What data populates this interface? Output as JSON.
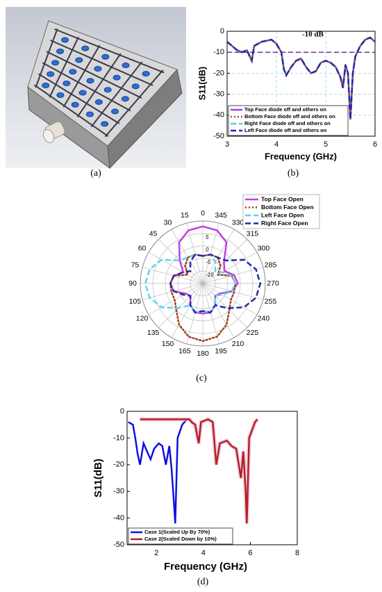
{
  "panel_a": {
    "caption": "(a)"
  },
  "chart_data": [
    {
      "type": "line",
      "caption": "(b)",
      "xlabel": "Frequency (GHz)",
      "ylabel": "S11(dB)",
      "annotation": "-10 dB",
      "hline": -10,
      "hline_color": "#7b2d8e",
      "xlim": [
        3,
        6
      ],
      "xticks": [
        3,
        4,
        5,
        6
      ],
      "ylim": [
        -50,
        0
      ],
      "yticks": [
        0,
        -10,
        -20,
        -30,
        -40,
        -50
      ],
      "grid": true,
      "legend": "lower left",
      "x": [
        3.0,
        3.1,
        3.2,
        3.3,
        3.4,
        3.5,
        3.55,
        3.7,
        3.9,
        4.0,
        4.1,
        4.15,
        4.2,
        4.3,
        4.4,
        4.5,
        4.6,
        4.7,
        4.8,
        4.9,
        5.0,
        5.1,
        5.2,
        5.3,
        5.35,
        5.4,
        5.45,
        5.5,
        5.55,
        5.6,
        5.7,
        5.8,
        5.9,
        6.0
      ],
      "series": [
        {
          "name": "Top Face diode off and others on",
          "color": "#a040f0",
          "style": "solid",
          "values": [
            -5,
            -7,
            -9,
            -10,
            -9,
            -14,
            -7,
            -5,
            -4,
            -6,
            -10,
            -18,
            -21,
            -17,
            -14,
            -13,
            -17,
            -20,
            -19,
            -15,
            -14,
            -15,
            -17,
            -22,
            -27,
            -16,
            -20,
            -42,
            -20,
            -12,
            -7,
            -4,
            -3,
            -5
          ]
        },
        {
          "name": "Bottom Face diode off and others on",
          "color": "#a0522d",
          "style": "dotted",
          "values": [
            -5,
            -7,
            -9,
            -10,
            -9,
            -14,
            -7,
            -5,
            -4,
            -6,
            -10,
            -18,
            -21,
            -17,
            -14,
            -13,
            -17,
            -20,
            -19,
            -15,
            -14,
            -15,
            -17,
            -22,
            -27,
            -16,
            -20,
            -42,
            -20,
            -12,
            -7,
            -4,
            -3,
            -5
          ]
        },
        {
          "name": "Right Face diode off and others on",
          "color": "#5cc8e8",
          "style": "dashed",
          "values": [
            -5,
            -7,
            -9,
            -10,
            -9,
            -14,
            -7,
            -5,
            -4,
            -6,
            -10,
            -18,
            -21,
            -17,
            -14,
            -13,
            -17,
            -20,
            -19,
            -15,
            -14,
            -15,
            -17,
            -22,
            -27,
            -16,
            -20,
            -42,
            -20,
            -12,
            -7,
            -4,
            -3,
            -5
          ]
        },
        {
          "name": "Left Face diode off and others on",
          "color": "#1f2aa8",
          "style": "dashed",
          "values": [
            -5,
            -7,
            -9,
            -10,
            -9,
            -14,
            -7,
            -5,
            -4,
            -6,
            -10,
            -18,
            -21,
            -17,
            -14,
            -13,
            -17,
            -20,
            -19,
            -15,
            -14,
            -15,
            -17,
            -22,
            -27,
            -16,
            -20,
            -42,
            -20,
            -12,
            -7,
            -4,
            -3,
            -5
          ]
        }
      ]
    },
    {
      "type": "polar",
      "caption": "(c)",
      "theta": [
        0,
        15,
        30,
        45,
        60,
        75,
        90,
        105,
        120,
        135,
        150,
        165,
        180,
        195,
        210,
        225,
        240,
        255,
        270,
        285,
        300,
        315,
        330,
        345
      ],
      "rlim": [
        -15,
        10
      ],
      "rticks": [
        -10,
        -5,
        0,
        5
      ],
      "grid": true,
      "legend": "upper right",
      "series": [
        {
          "name": "Top Face Open",
          "color": "#c040e0",
          "style": "solid",
          "values": [
            7.8,
            7,
            4,
            -2,
            -6,
            -3,
            -2,
            -3,
            -7,
            -8,
            -5,
            -3,
            -3,
            -3,
            -5,
            -8,
            -7,
            -3,
            -1,
            -2,
            -5,
            -3,
            4,
            7
          ]
        },
        {
          "name": "Bottom Face Open",
          "color": "#a0401e",
          "style": "dotted",
          "values": [
            -4,
            -3,
            -3,
            -5,
            -8,
            -3,
            -2,
            -2,
            -2,
            0,
            4,
            7,
            8,
            7,
            4,
            0,
            -2,
            -2,
            -2,
            -3,
            -8,
            -5,
            -3,
            -3
          ]
        },
        {
          "name": "Left Face Open",
          "color": "#5cd0f0",
          "style": "dashed",
          "values": [
            -4,
            -3,
            -3,
            -2,
            4,
            7,
            8,
            7,
            4,
            -1,
            -5,
            -3,
            -4,
            -3,
            -5,
            -8,
            -6,
            -3,
            -2,
            -3,
            -6,
            -8,
            -5,
            -3
          ]
        },
        {
          "name": "Right Face Open",
          "color": "#1f2aa8",
          "style": "dashed",
          "values": [
            -4,
            -3,
            -5,
            -8,
            -6,
            -3,
            -2,
            -3,
            -6,
            -8,
            -5,
            -3,
            -4,
            -3,
            -5,
            -1,
            4,
            7,
            8,
            7,
            4,
            -2,
            -3,
            -3
          ]
        }
      ]
    },
    {
      "type": "line",
      "caption": "(d)",
      "xlabel": "Frequency (GHz)",
      "ylabel": "S11(dB)",
      "xlim": [
        0.75,
        8
      ],
      "xticks": [
        2,
        4,
        6,
        8
      ],
      "ylim": [
        -50,
        0
      ],
      "yticks": [
        0,
        -10,
        -20,
        -30,
        -40,
        -50
      ],
      "grid": false,
      "legend": "lower left",
      "series": [
        {
          "name": "Case 1(Scaled Up By 70%)",
          "color": "#1010e0",
          "style": "solid",
          "x": [
            0.8,
            1.0,
            1.1,
            1.2,
            1.3,
            1.45,
            1.6,
            1.75,
            1.9,
            2.1,
            2.25,
            2.4,
            2.55,
            2.65,
            2.75,
            2.8,
            2.9,
            3.1,
            3.3
          ],
          "values": [
            -4,
            -5,
            -10,
            -16,
            -20,
            -12,
            -15,
            -18,
            -14,
            -12,
            -13,
            -20,
            -13,
            -22,
            -35,
            -42,
            -10,
            -5,
            -3
          ]
        },
        {
          "name": "Case 2(Scaled Down by 10%)",
          "color": "#b22222",
          "style": "solid",
          "x": [
            1.3,
            2.0,
            3.0,
            3.4,
            3.5,
            3.65,
            3.8,
            3.9,
            4.2,
            4.4,
            4.55,
            4.7,
            5.0,
            5.2,
            5.4,
            5.6,
            5.7,
            5.8,
            5.85,
            5.95,
            6.2,
            6.3
          ],
          "values": [
            -3,
            -3,
            -3,
            -3,
            -4,
            -5,
            -12,
            -4,
            -3,
            -4,
            -20,
            -12,
            -11,
            -13,
            -14,
            -25,
            -15,
            -30,
            -42,
            -10,
            -4,
            -3
          ]
        }
      ]
    }
  ]
}
